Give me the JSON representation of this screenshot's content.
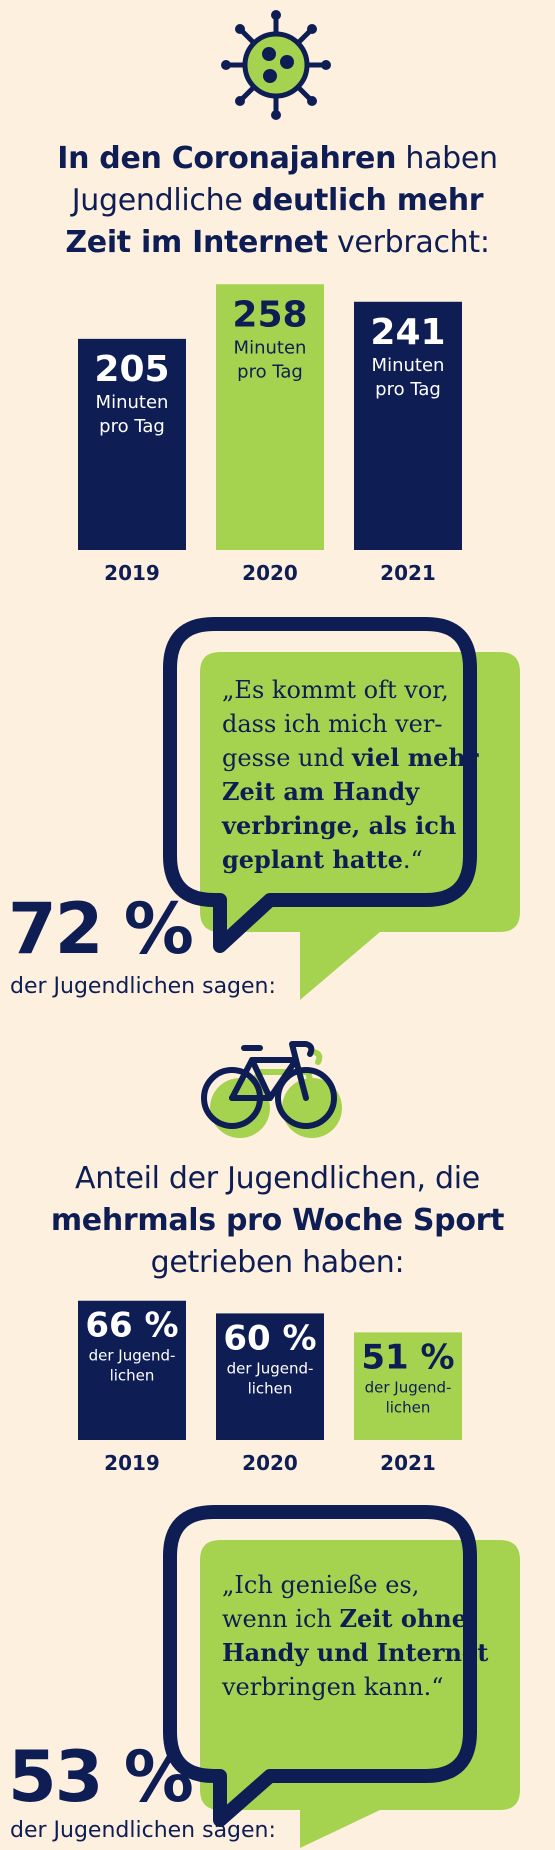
{
  "colors": {
    "navy": "#0e1d54",
    "green": "#a6d34f",
    "background": "#fdf0df"
  },
  "icons": {
    "top": "virus-icon",
    "middle": "bicycle-icon"
  },
  "section1": {
    "headline": {
      "line1_bold": "In den Coronajahren",
      "line1_normal": " haben",
      "line2_normal": "Jugendliche ",
      "line2_bold": "deutlich mehr",
      "line3_bold": "Zeit im Internet",
      "line3_normal": " verbracht:"
    }
  },
  "chart_data": [
    {
      "type": "bar",
      "categories": [
        "2019",
        "2020",
        "2021"
      ],
      "values": [
        205,
        258,
        241
      ],
      "bar_colors": [
        "#0e1d54",
        "#a6d34f",
        "#0e1d54"
      ],
      "label_sub": [
        "Minuten",
        "pro Tag"
      ]
    },
    {
      "type": "bar",
      "categories": [
        "2019",
        "2020",
        "2021"
      ],
      "values": [
        66,
        60,
        51
      ],
      "value_suffix": " %",
      "bar_colors": [
        "#0e1d54",
        "#0e1d54",
        "#a6d34f"
      ],
      "label_sub": [
        "der Jugend-",
        "lichen"
      ]
    }
  ],
  "quote1": {
    "open": "„Es kommt oft vor,",
    "l2": "dass ich mich ver-",
    "l3_normal": "gesse und ",
    "l3_bold": "viel mehr",
    "l4_bold": "Zeit am Handy",
    "l5_bold": "verbringe, als ich",
    "l6_bold": "geplant hatte",
    "l6_end": ".“",
    "percent": "72 %",
    "caption": "der Jugendlichen sagen:"
  },
  "section2": {
    "headline": {
      "line1": "Anteil der Jugendlichen, die",
      "line2_bold": "mehrmals pro Woche Sport",
      "line3": "getrieben haben:"
    }
  },
  "quote2": {
    "l1": "„Ich genieße es,",
    "l2_normal": "wenn ich ",
    "l2_bold": "Zeit ohne",
    "l3_bold": "Handy und Internet",
    "l4": "verbringen kann.“",
    "percent": "53 %",
    "caption": "der Jugendlichen sagen:"
  }
}
